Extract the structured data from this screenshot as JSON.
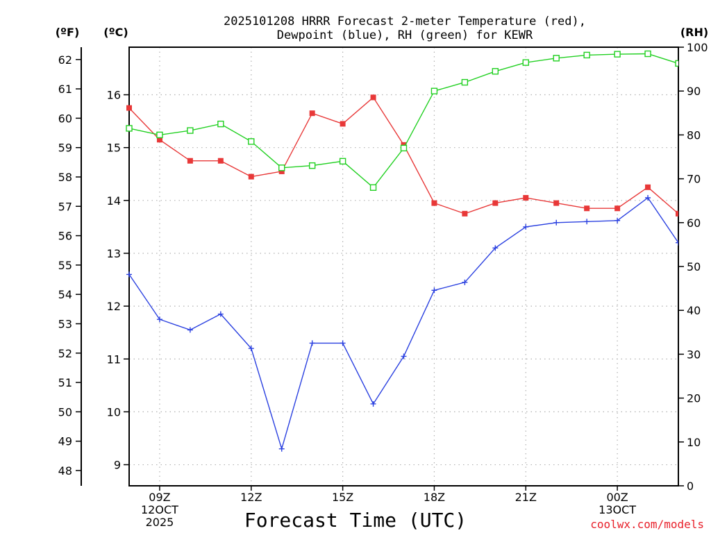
{
  "chart_data": {
    "type": "line",
    "title_line1": "2025101208 HRRR Forecast 2-meter Temperature (red),",
    "title_line2": "Dewpoint (blue), RH (green) for KEWR",
    "xlabel": "Forecast Time (UTC)",
    "credit": "coolwx.com/models",
    "unit_f": "(ºF)",
    "unit_c": "(ºC)",
    "unit_rh": "(RH)",
    "x_hours": [
      8,
      9,
      10,
      11,
      12,
      13,
      14,
      15,
      16,
      17,
      18,
      19,
      20,
      21,
      22,
      23,
      24,
      25,
      26
    ],
    "xlim": [
      8,
      26
    ],
    "x_ticks": [
      {
        "hour": 9,
        "lines": [
          "09Z",
          "12OCT",
          "2025"
        ]
      },
      {
        "hour": 12,
        "lines": [
          "12Z"
        ]
      },
      {
        "hour": 15,
        "lines": [
          "15Z"
        ]
      },
      {
        "hour": 18,
        "lines": [
          "18Z"
        ]
      },
      {
        "hour": 21,
        "lines": [
          "21Z"
        ]
      },
      {
        "hour": 24,
        "lines": [
          "00Z",
          "13OCT"
        ]
      }
    ],
    "ylim_c": [
      8.6,
      16.9
    ],
    "yticks_c": [
      "9",
      "10",
      "11",
      "12",
      "13",
      "14",
      "15",
      "16"
    ],
    "yticks_f": [
      "48",
      "49",
      "50",
      "51",
      "52",
      "53",
      "54",
      "55",
      "56",
      "57",
      "58",
      "59",
      "60",
      "61",
      "62"
    ],
    "ylim_rh": [
      0,
      100
    ],
    "yticks_rh": [
      "0",
      "10",
      "20",
      "30",
      "40",
      "50",
      "60",
      "70",
      "80",
      "90",
      "100"
    ],
    "series": [
      {
        "name": "2-meter Temperature",
        "axis": "C",
        "color": "#e83838",
        "marker": "filled-square",
        "values": [
          15.75,
          15.15,
          14.75,
          14.75,
          14.45,
          14.55,
          15.65,
          15.45,
          15.95,
          15.05,
          13.95,
          13.75,
          13.95,
          14.05,
          13.95,
          13.85,
          13.85,
          14.25,
          13.75
        ]
      },
      {
        "name": "Dewpoint",
        "axis": "C",
        "color": "#2a40e0",
        "marker": "plus",
        "values": [
          12.6,
          11.75,
          11.55,
          11.85,
          11.2,
          9.3,
          11.3,
          11.3,
          10.15,
          11.05,
          12.3,
          12.45,
          13.1,
          13.5,
          13.58,
          13.6,
          13.62,
          14.05,
          13.2
        ]
      },
      {
        "name": "RH",
        "axis": "RH",
        "color": "#20d020",
        "marker": "open-square",
        "values": [
          81.5,
          80,
          81,
          82.5,
          78.5,
          72.5,
          73,
          74,
          68,
          77,
          90,
          92,
          94.5,
          96.5,
          97.5,
          98.2,
          98.4,
          98.5,
          96.3
        ]
      }
    ]
  }
}
